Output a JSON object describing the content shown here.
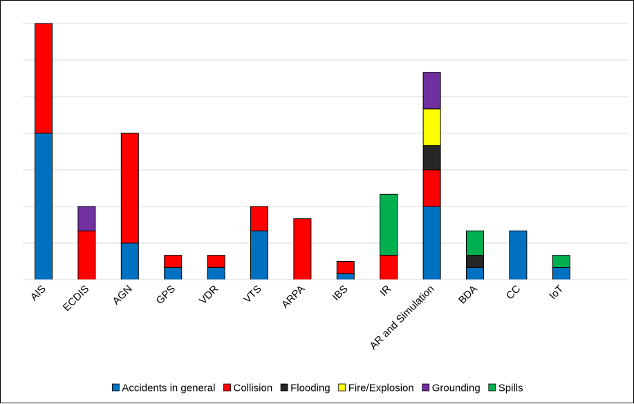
{
  "chart_data": {
    "type": "bar",
    "stacked": true,
    "categories": [
      "AIS",
      "ECDIS",
      "AGN",
      "GPS",
      "VDR",
      "VTS",
      "ARPA",
      "IBS",
      "IR",
      "AR and Simulation",
      "BDA",
      "CC",
      "IoT"
    ],
    "series": [
      {
        "name": "Accidents in general",
        "color": "#0070C0",
        "values": [
          12,
          0,
          3,
          1,
          1,
          4,
          0,
          0.5,
          0,
          6,
          1,
          4,
          1
        ]
      },
      {
        "name": "Collision",
        "color": "#FF0000",
        "values": [
          9,
          4,
          9,
          1,
          1,
          2,
          5,
          1,
          2,
          3,
          0,
          0,
          0
        ]
      },
      {
        "name": "Flooding",
        "color": "#262626",
        "values": [
          0,
          0,
          0,
          0,
          0,
          0,
          0,
          0,
          0,
          2,
          1,
          0,
          0
        ]
      },
      {
        "name": "Fire/Explosion",
        "color": "#FFFF00",
        "values": [
          0,
          0,
          0,
          0,
          0,
          0,
          0,
          0,
          0,
          3,
          0,
          0,
          0
        ]
      },
      {
        "name": "Grounding",
        "color": "#7030A0",
        "values": [
          0,
          2,
          0,
          0,
          0,
          0,
          0,
          0,
          0,
          3,
          0,
          0,
          0
        ]
      },
      {
        "name": "Spills",
        "color": "#00B050",
        "values": [
          0,
          0,
          0,
          0,
          0,
          0,
          0,
          0,
          5,
          0,
          2,
          0,
          1
        ]
      }
    ],
    "ylim": [
      0,
      21
    ],
    "grid": true,
    "legend_position": "bottom",
    "title": "",
    "xlabel": "",
    "ylabel": ""
  }
}
